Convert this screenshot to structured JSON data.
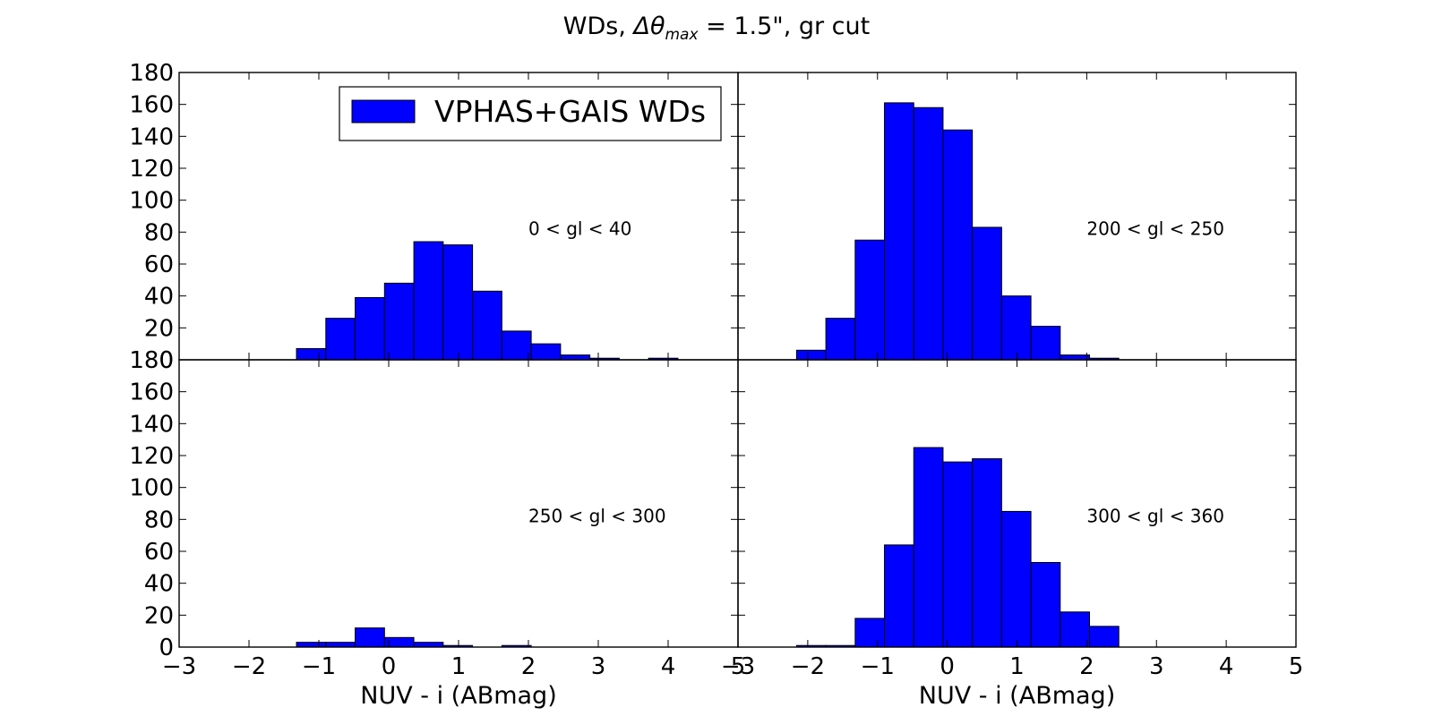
{
  "title_prefix": "WDs, ",
  "title_symbol": "Δθ",
  "title_subscript": "max",
  "title_suffix": " = 1.5\", gr cut",
  "legend_label": "VPHAS+GAIS WDs",
  "colors": {
    "bar": "#0000ff",
    "edge": "#000000",
    "axes": "#000000",
    "background": "#ffffff"
  },
  "chart_data": [
    {
      "type": "bar",
      "panel": "top-left",
      "annotation": "0 < gl < 40",
      "xlabel": "",
      "ylabel": "",
      "xlim": [
        -3,
        5
      ],
      "ylim": [
        0,
        180
      ],
      "bin_width": 0.42,
      "bin_starts": [
        -3.0,
        -2.58,
        -2.16,
        -1.74,
        -1.32,
        -0.9,
        -0.48,
        -0.06,
        0.36,
        0.78,
        1.2,
        1.62,
        2.04,
        2.46,
        2.88,
        3.3,
        3.72
      ],
      "values": [
        0,
        0,
        0,
        0,
        7,
        26,
        39,
        48,
        74,
        72,
        43,
        18,
        10,
        3,
        1,
        0,
        1
      ],
      "legend": "top-right",
      "yticks": [
        0,
        20,
        40,
        60,
        80,
        100,
        120,
        140,
        160,
        180
      ],
      "xticks": []
    },
    {
      "type": "bar",
      "panel": "top-right",
      "annotation": "200 < gl < 250",
      "xlabel": "",
      "ylabel": "",
      "xlim": [
        -3,
        5
      ],
      "ylim": [
        0,
        180
      ],
      "bin_width": 0.42,
      "bin_starts": [
        -3.0,
        -2.58,
        -2.16,
        -1.74,
        -1.32,
        -0.9,
        -0.48,
        -0.06,
        0.36,
        0.78,
        1.2,
        1.62,
        2.04
      ],
      "values": [
        0,
        0,
        6,
        26,
        75,
        161,
        158,
        144,
        83,
        40,
        21,
        3,
        1
      ],
      "yticks": [],
      "xticks": []
    },
    {
      "type": "bar",
      "panel": "bottom-left",
      "annotation": "250 < gl < 300",
      "xlabel": "NUV - i (ABmag)",
      "ylabel": "",
      "xlim": [
        -3,
        5
      ],
      "ylim": [
        0,
        180
      ],
      "bin_width": 0.42,
      "bin_starts": [
        -3.0,
        -2.58,
        -2.16,
        -1.74,
        -1.32,
        -0.9,
        -0.48,
        -0.06,
        0.36,
        0.78,
        1.2,
        1.62
      ],
      "values": [
        0,
        0,
        0,
        0,
        3,
        3,
        12,
        6,
        3,
        1,
        0,
        1
      ],
      "yticks": [
        0,
        20,
        40,
        60,
        80,
        100,
        120,
        140,
        160,
        180
      ],
      "xticks": [
        -3,
        -2,
        -1,
        0,
        1,
        2,
        3,
        4,
        5
      ]
    },
    {
      "type": "bar",
      "panel": "bottom-right",
      "annotation": "300 < gl < 360",
      "xlabel": "NUV - i (ABmag)",
      "ylabel": "",
      "xlim": [
        -3,
        5
      ],
      "ylim": [
        0,
        180
      ],
      "bin_width": 0.42,
      "bin_starts": [
        -3.0,
        -2.58,
        -2.16,
        -1.74,
        -1.32,
        -0.9,
        -0.48,
        -0.06,
        0.36,
        0.78,
        1.2,
        1.62,
        2.04
      ],
      "values": [
        0,
        0,
        1,
        1,
        18,
        64,
        125,
        116,
        118,
        85,
        53,
        22,
        13
      ],
      "yticks": [],
      "xticks": [
        -3,
        -2,
        -1,
        0,
        1,
        2,
        3,
        4,
        5
      ]
    }
  ]
}
